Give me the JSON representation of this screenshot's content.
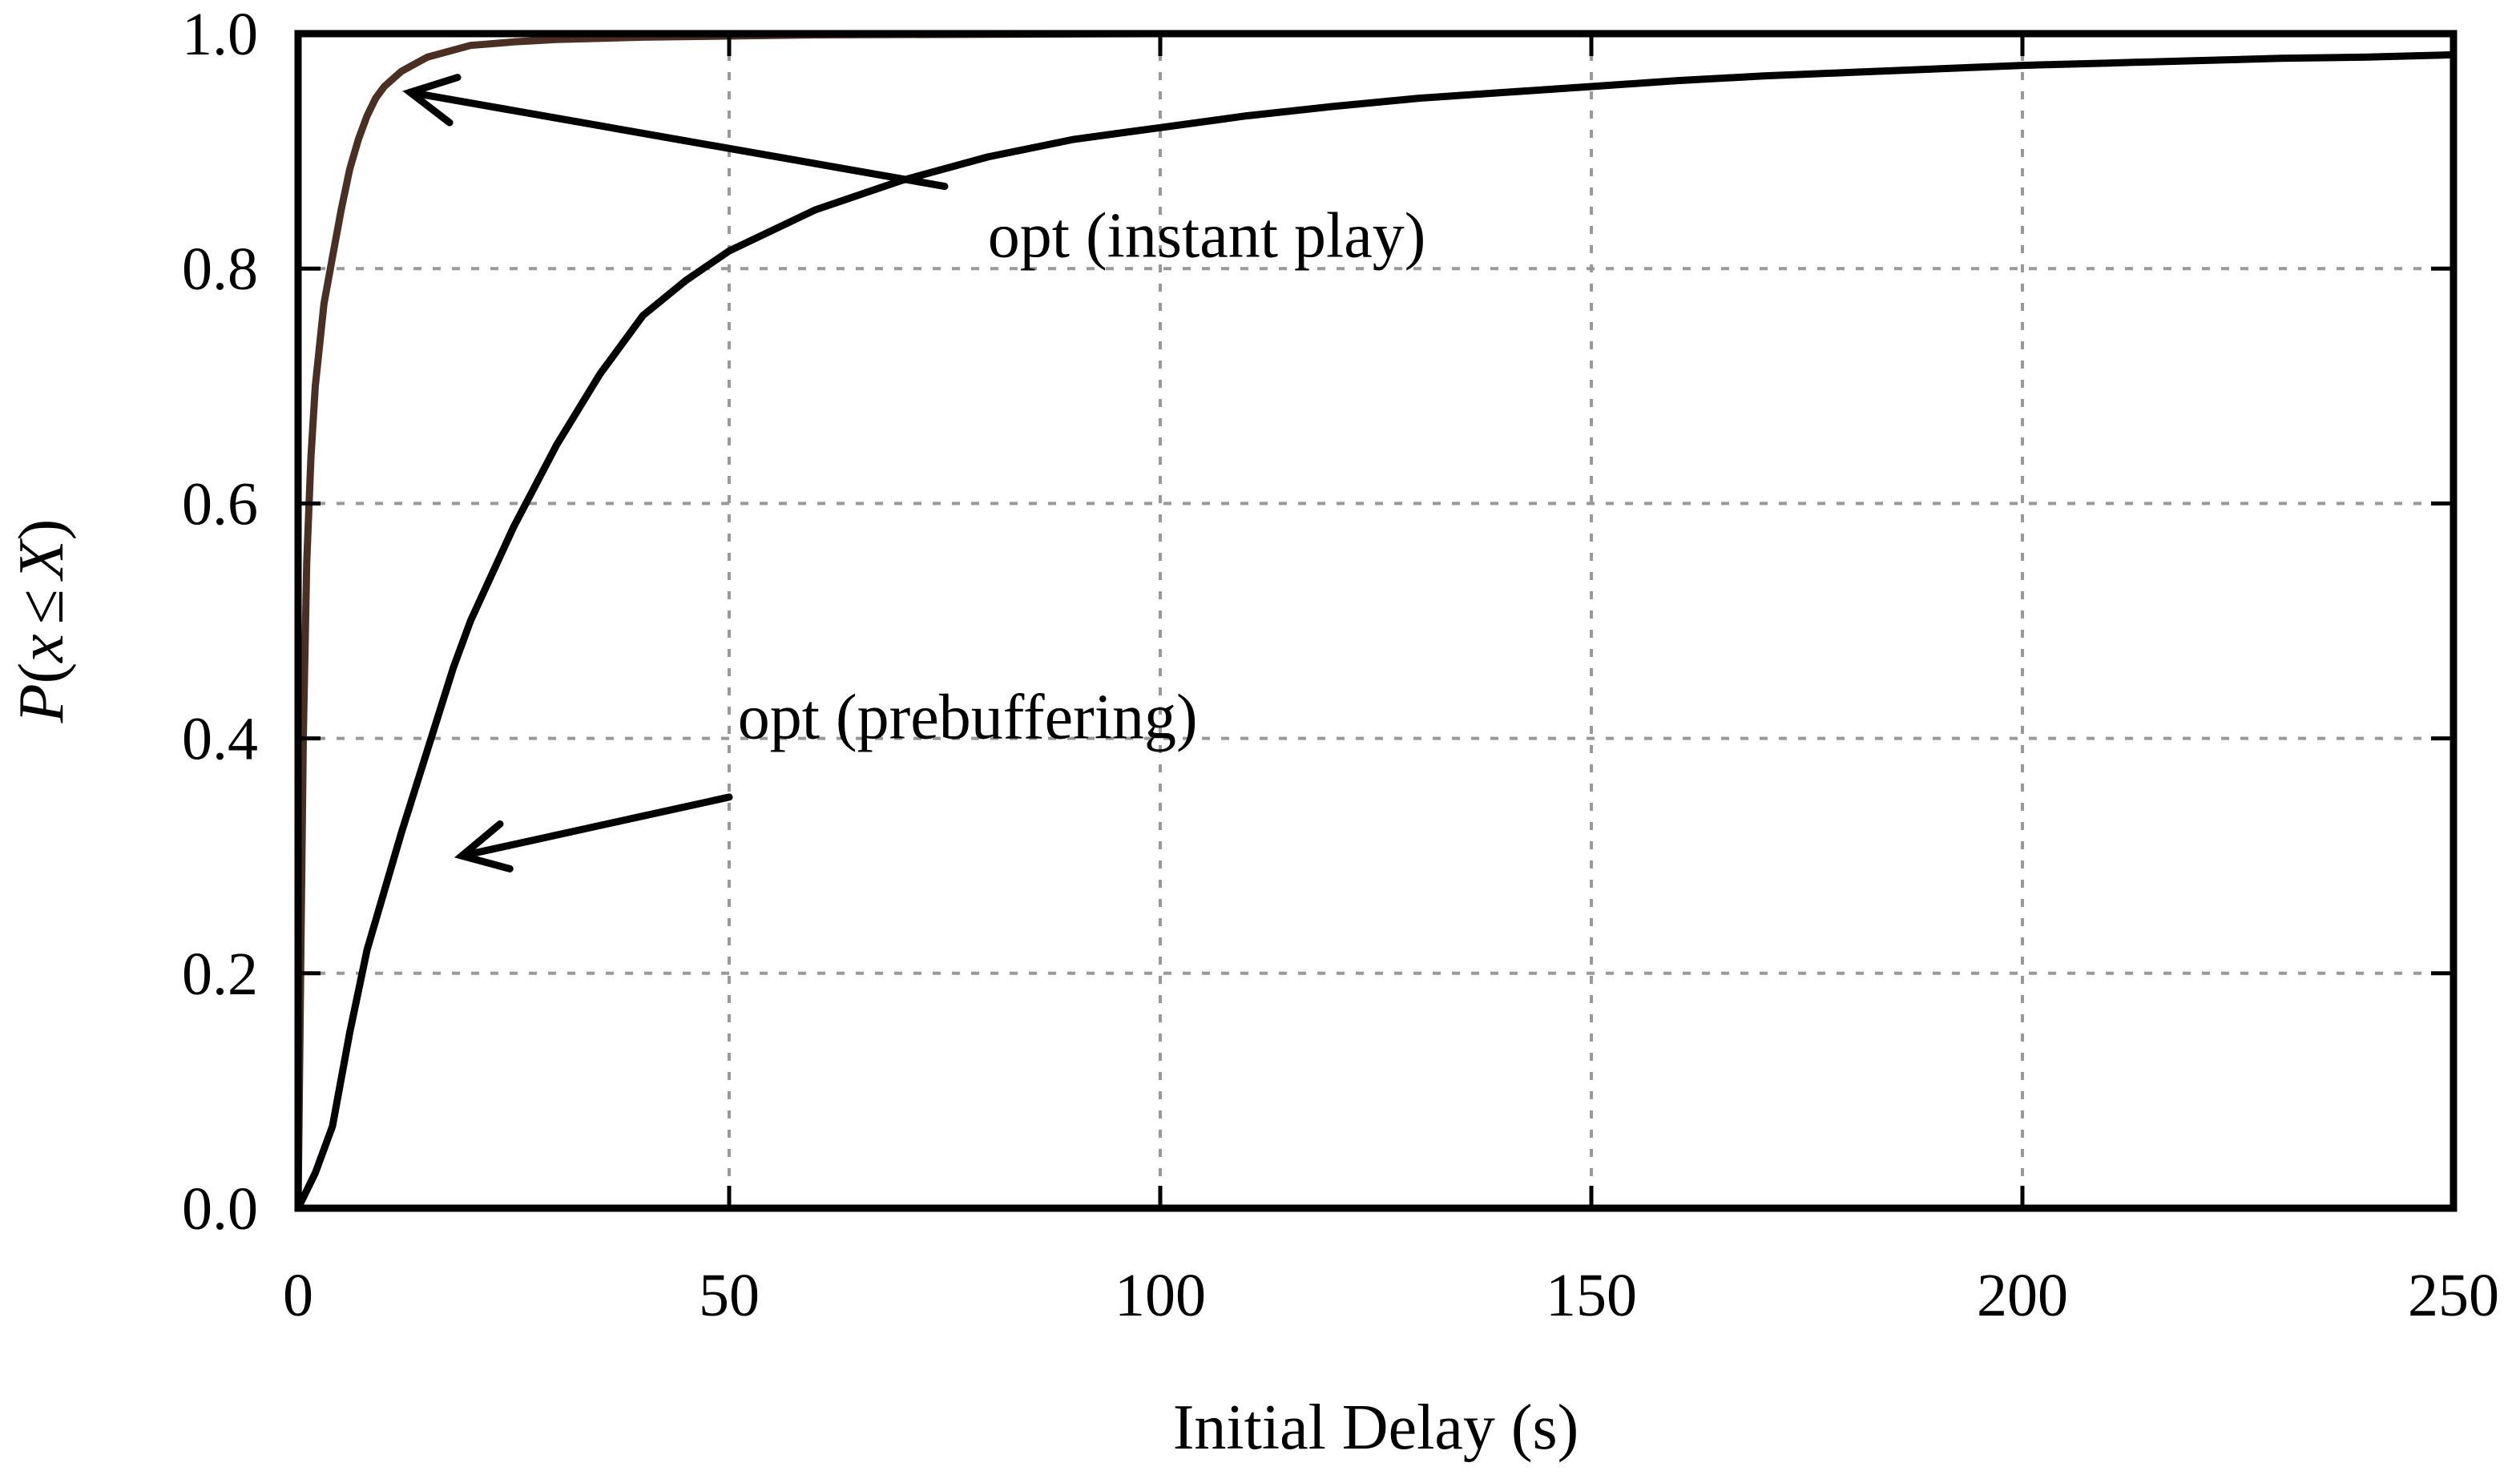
{
  "chart_data": {
    "type": "line",
    "xlabel": "Initial Delay (s)",
    "ylabel": "P(x ≤ X)",
    "ylabel_parts": {
      "p": "P",
      "open": "(",
      "x": "x",
      "le": "≤",
      "X": "X",
      "close": ")"
    },
    "xlim": [
      0,
      250
    ],
    "ylim": [
      0,
      1.0
    ],
    "grid": true,
    "x_ticks": [
      0,
      50,
      100,
      150,
      200,
      250
    ],
    "x_tick_labels": [
      "0",
      "50",
      "100",
      "150",
      "200",
      "250"
    ],
    "y_ticks": [
      0,
      0.2,
      0.4,
      0.6,
      0.8,
      1.0
    ],
    "y_tick_labels": [
      "0.0",
      "0.2",
      "0.4",
      "0.6",
      "0.8",
      "1.0"
    ],
    "series": [
      {
        "name": "opt (instant play)",
        "color": "#4a2f22",
        "x": [
          0,
          0.3,
          0.6,
          1,
          1.5,
          2,
          3,
          4,
          5,
          6,
          7,
          8,
          9,
          10,
          12,
          15,
          20,
          25,
          30,
          40,
          60,
          100,
          250
        ],
        "y": [
          0,
          0.2,
          0.4,
          0.55,
          0.64,
          0.7,
          0.77,
          0.81,
          0.85,
          0.885,
          0.91,
          0.93,
          0.945,
          0.955,
          0.968,
          0.98,
          0.99,
          0.993,
          0.995,
          0.997,
          0.999,
          1.0,
          1.0
        ]
      },
      {
        "name": "opt (prebuffering)",
        "color": "#000000",
        "x": [
          0,
          2,
          4,
          6,
          8,
          10,
          12,
          15,
          18,
          20,
          25,
          30,
          35,
          40,
          45,
          50,
          60,
          70,
          80,
          90,
          100,
          110,
          120,
          130,
          140,
          150,
          160,
          170,
          180,
          190,
          200,
          210,
          220,
          230,
          240,
          250
        ],
        "y": [
          0,
          0.03,
          0.07,
          0.15,
          0.22,
          0.27,
          0.32,
          0.39,
          0.46,
          0.5,
          0.58,
          0.65,
          0.71,
          0.76,
          0.79,
          0.815,
          0.85,
          0.875,
          0.895,
          0.91,
          0.92,
          0.93,
          0.938,
          0.945,
          0.95,
          0.955,
          0.96,
          0.964,
          0.967,
          0.97,
          0.973,
          0.975,
          0.977,
          0.979,
          0.98,
          0.982
        ]
      }
    ],
    "annotations": [
      {
        "text": "opt (instant play)",
        "text_at": [
          80,
          0.81
        ],
        "arrow_from": [
          75,
          0.87
        ],
        "arrow_to": [
          13,
          0.95
        ]
      },
      {
        "text": "opt (prebuffering)",
        "text_at": [
          51,
          0.4
        ],
        "arrow_from": [
          50,
          0.35
        ],
        "arrow_to": [
          19,
          0.3
        ]
      }
    ]
  }
}
